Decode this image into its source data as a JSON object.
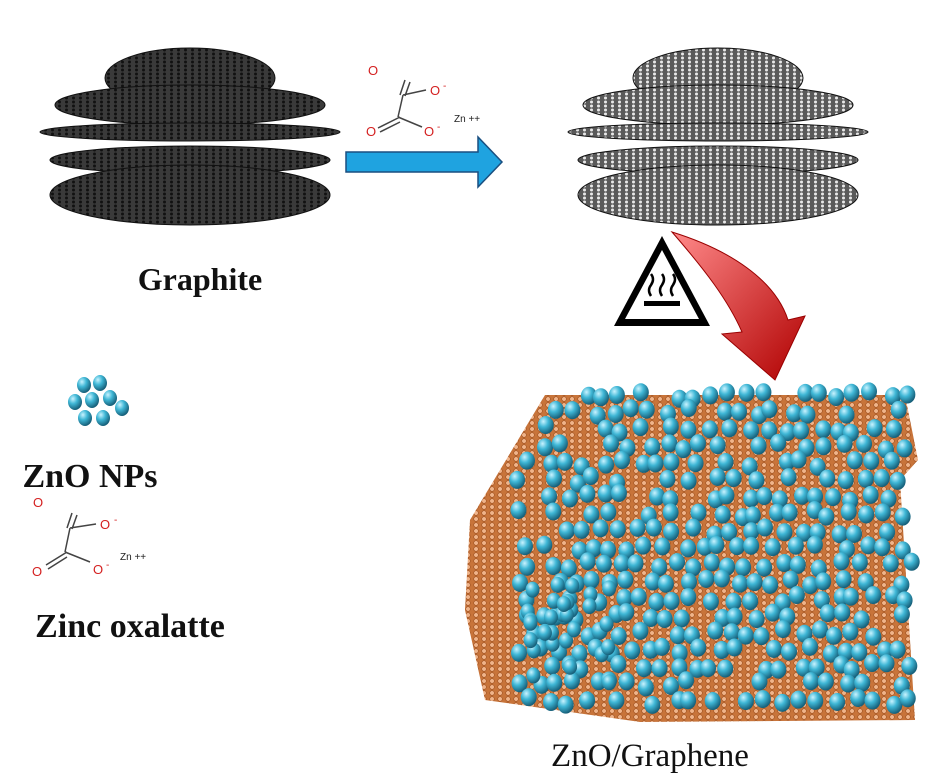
{
  "labels": {
    "graphite": "Graphite",
    "zno_nps": "ZnO NPs",
    "zinc_oxalate": "Zinc oxalatte",
    "product": "ZnO/Graphene"
  },
  "reagent_molecule": {
    "atoms": [
      "O",
      "O",
      "O",
      "O"
    ],
    "charges": [
      "-",
      "-"
    ],
    "cation": "Zn ++"
  },
  "legend_molecule": {
    "atoms": [
      "O",
      "O",
      "O",
      "O"
    ],
    "charges": [
      "-",
      "-"
    ],
    "cation": "Zn ++"
  }
}
